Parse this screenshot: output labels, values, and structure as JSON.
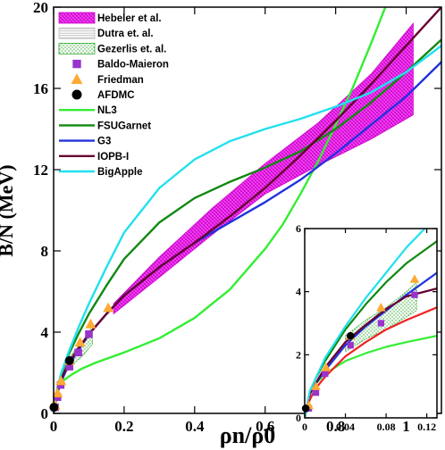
{
  "chart_data": [
    {
      "type": "line",
      "xlabel": "ρn/ρ0",
      "ylabel": "B/N (MeV)",
      "xlim": [
        0,
        1.1
      ],
      "ylim": [
        0,
        20
      ],
      "xticks": [
        "0",
        "0.2",
        "0.4",
        "0.6",
        "0.8",
        "1"
      ],
      "yticks": [
        "0",
        "4",
        "8",
        "12",
        "16",
        "20"
      ],
      "legend_position": "top-left",
      "legend": [
        {
          "name": "Hebeler et al.",
          "kind": "band",
          "color": "#ff3cff"
        },
        {
          "name": "Dutra et. al.",
          "kind": "band",
          "color": "#bbbbbb"
        },
        {
          "name": "Gezerlis et. al.",
          "kind": "band",
          "color": "#33aa33"
        },
        {
          "name": "Baldo-Maieron",
          "kind": "marker",
          "color": "#9933cc"
        },
        {
          "name": "Friedman",
          "kind": "marker",
          "color": "#ffaa33"
        },
        {
          "name": "AFDMC",
          "kind": "marker",
          "color": "#000000"
        },
        {
          "name": "NL3",
          "kind": "line",
          "color": "#33ee33"
        },
        {
          "name": "FSUGarnet",
          "kind": "line",
          "color": "#118811"
        },
        {
          "name": "G3",
          "kind": "line",
          "color": "#2233dd"
        },
        {
          "name": "IOPB-I",
          "kind": "line",
          "color": "#660033"
        },
        {
          "name": "BigApple",
          "kind": "line",
          "color": "#22e0ee"
        }
      ],
      "bands": [
        {
          "name": "Hebeler et al.",
          "x": [
            0.17,
            0.3,
            0.45,
            0.6,
            0.75,
            0.9,
            1.02
          ],
          "lower": [
            4.9,
            6.7,
            8.8,
            10.8,
            12.2,
            13.5,
            14.7
          ],
          "upper": [
            5.4,
            7.7,
            10.1,
            12.3,
            14.3,
            16.7,
            19.2
          ]
        },
        {
          "name": "Gezerlis et. al.",
          "x": [
            0.04,
            0.06,
            0.08,
            0.1,
            0.11
          ],
          "lower": [
            2.1,
            2.5,
            2.8,
            3.2,
            3.4
          ],
          "upper": [
            2.6,
            3.1,
            3.5,
            4.0,
            4.3
          ]
        }
      ],
      "series": [
        {
          "name": "Baldo-Maieron",
          "type": "scatter",
          "color": "#9933cc",
          "x": [
            0.004,
            0.011,
            0.02,
            0.045,
            0.07,
            0.1
          ],
          "y": [
            0.3,
            0.8,
            1.4,
            2.3,
            3.0,
            3.9
          ]
        },
        {
          "name": "Friedman",
          "type": "scatter",
          "color": "#ffaa33",
          "x": [
            0.004,
            0.011,
            0.021,
            0.045,
            0.075,
            0.105,
            0.155
          ],
          "y": [
            0.4,
            1.0,
            1.6,
            2.6,
            3.5,
            4.4,
            5.2
          ]
        },
        {
          "name": "AFDMC",
          "type": "scatter",
          "color": "#000000",
          "x": [
            0.001,
            0.045
          ],
          "y": [
            0.3,
            2.6
          ]
        },
        {
          "name": "NL3",
          "type": "line",
          "color": "#33ee33",
          "x": [
            0,
            0.01,
            0.02,
            0.03,
            0.05,
            0.08,
            0.12,
            0.2,
            0.3,
            0.4,
            0.5,
            0.6,
            0.65,
            0.7,
            0.75,
            0.8,
            0.85,
            0.9,
            0.95
          ],
          "y": [
            0,
            1.0,
            1.4,
            1.65,
            1.9,
            2.2,
            2.5,
            3.0,
            3.7,
            4.7,
            6.1,
            8.1,
            9.3,
            10.8,
            12.4,
            14.2,
            16.1,
            18.2,
            20.4
          ]
        },
        {
          "name": "FSUGarnet",
          "type": "line",
          "color": "#118811",
          "x": [
            0,
            0.01,
            0.02,
            0.04,
            0.07,
            0.1,
            0.15,
            0.2,
            0.3,
            0.4,
            0.5,
            0.6,
            0.7,
            0.8,
            0.9,
            1.0,
            1.1
          ],
          "y": [
            0,
            1.1,
            1.8,
            2.8,
            3.9,
            4.9,
            6.3,
            7.6,
            9.4,
            10.6,
            11.4,
            12.1,
            12.9,
            14.0,
            15.3,
            16.8,
            18.4
          ]
        },
        {
          "name": "G3",
          "type": "line",
          "color": "#2233dd",
          "x": [
            0,
            0.01,
            0.02,
            0.04,
            0.07,
            0.1,
            0.15,
            0.2,
            0.3,
            0.4,
            0.5,
            0.6,
            0.7,
            0.8,
            0.9,
            1.0,
            1.1
          ],
          "y": [
            0,
            1.0,
            1.5,
            2.3,
            3.1,
            3.9,
            4.9,
            5.8,
            7.2,
            8.4,
            9.4,
            10.4,
            11.5,
            12.8,
            14.2,
            15.6,
            17.3
          ]
        },
        {
          "name": "IOPB-I",
          "type": "line",
          "color": "#660033",
          "x": [
            0,
            0.01,
            0.02,
            0.04,
            0.07,
            0.1,
            0.15,
            0.2,
            0.3,
            0.4,
            0.5,
            0.6,
            0.7,
            0.8,
            0.9,
            1.0,
            1.1
          ],
          "y": [
            0,
            1.1,
            1.6,
            2.4,
            3.2,
            3.9,
            4.9,
            5.8,
            7.2,
            8.4,
            9.7,
            11.1,
            12.7,
            14.4,
            16.2,
            18.1,
            20.0
          ]
        },
        {
          "name": "BigApple",
          "type": "line",
          "color": "#22e0ee",
          "x": [
            0,
            0.01,
            0.02,
            0.04,
            0.07,
            0.1,
            0.15,
            0.2,
            0.3,
            0.4,
            0.5,
            0.6,
            0.7,
            0.8,
            0.9,
            1.0,
            1.1
          ],
          "y": [
            0,
            1.2,
            1.9,
            2.9,
            4.2,
            5.4,
            7.2,
            8.9,
            11.1,
            12.5,
            13.4,
            14.0,
            14.5,
            15.1,
            15.8,
            16.8,
            18.1
          ]
        }
      ]
    },
    {
      "type": "line",
      "title": "",
      "xlim": [
        0,
        0.13
      ],
      "ylim": [
        0,
        6
      ],
      "xticks": [
        "0",
        "0.04",
        "0.08",
        "0.12"
      ],
      "yticks": [
        "0",
        "2",
        "4",
        "6"
      ],
      "bands": [
        {
          "name": "Gezerlis et. al.",
          "x": [
            0.04,
            0.06,
            0.08,
            0.1,
            0.11
          ],
          "lower": [
            2.1,
            2.5,
            2.8,
            3.2,
            3.4
          ],
          "upper": [
            2.6,
            3.1,
            3.5,
            4.0,
            4.3
          ]
        }
      ],
      "series": [
        {
          "name": "Baldo-Maieron",
          "type": "scatter",
          "color": "#9933cc",
          "x": [
            0.004,
            0.011,
            0.02,
            0.045,
            0.075,
            0.108
          ],
          "y": [
            0.3,
            0.8,
            1.4,
            2.3,
            3.0,
            3.9
          ]
        },
        {
          "name": "Friedman",
          "type": "scatter",
          "color": "#ffaa33",
          "x": [
            0.004,
            0.011,
            0.021,
            0.045,
            0.075,
            0.108
          ],
          "y": [
            0.4,
            1.0,
            1.6,
            2.6,
            3.5,
            4.4
          ]
        },
        {
          "name": "AFDMC",
          "type": "scatter",
          "color": "#000000",
          "x": [
            0.001,
            0.045
          ],
          "y": [
            0.3,
            2.6
          ]
        },
        {
          "name": "NL3",
          "type": "line",
          "color": "#33ee33",
          "x": [
            0,
            0.005,
            0.01,
            0.02,
            0.04,
            0.06,
            0.08,
            0.1,
            0.13
          ],
          "y": [
            0,
            0.8,
            1.05,
            1.4,
            1.8,
            2.05,
            2.25,
            2.4,
            2.6
          ]
        },
        {
          "name": "FSUGarnet",
          "type": "line",
          "color": "#118811",
          "x": [
            0,
            0.005,
            0.01,
            0.02,
            0.04,
            0.06,
            0.08,
            0.1,
            0.13
          ],
          "y": [
            0,
            0.8,
            1.2,
            1.8,
            2.8,
            3.6,
            4.3,
            4.9,
            5.6
          ]
        },
        {
          "name": "G3",
          "type": "line",
          "color": "#2233dd",
          "x": [
            0,
            0.005,
            0.01,
            0.02,
            0.04,
            0.06,
            0.08,
            0.1,
            0.13
          ],
          "y": [
            0,
            0.75,
            1.05,
            1.5,
            2.3,
            2.9,
            3.4,
            3.9,
            4.6
          ]
        },
        {
          "name": "IOPB-I",
          "type": "line",
          "color": "#660033",
          "x": [
            0,
            0.005,
            0.01,
            0.02,
            0.04,
            0.06,
            0.08,
            0.1,
            0.13
          ],
          "y": [
            0,
            0.75,
            1.05,
            1.6,
            2.4,
            2.95,
            3.45,
            3.85,
            4.1
          ]
        },
        {
          "name": "BigApple",
          "type": "line",
          "color": "#22e0ee",
          "x": [
            0,
            0.005,
            0.01,
            0.02,
            0.04,
            0.06,
            0.08,
            0.1,
            0.13
          ],
          "y": [
            0,
            0.85,
            1.2,
            1.9,
            2.9,
            3.8,
            4.6,
            5.4,
            6.4
          ]
        },
        {
          "name": "",
          "type": "line",
          "color": "#ee2222",
          "x": [
            0.001,
            0.01,
            0.02,
            0.04,
            0.06,
            0.08,
            0.1,
            0.13
          ],
          "y": [
            0.3,
            0.9,
            1.3,
            1.95,
            2.4,
            2.8,
            3.1,
            3.5
          ]
        }
      ]
    }
  ]
}
